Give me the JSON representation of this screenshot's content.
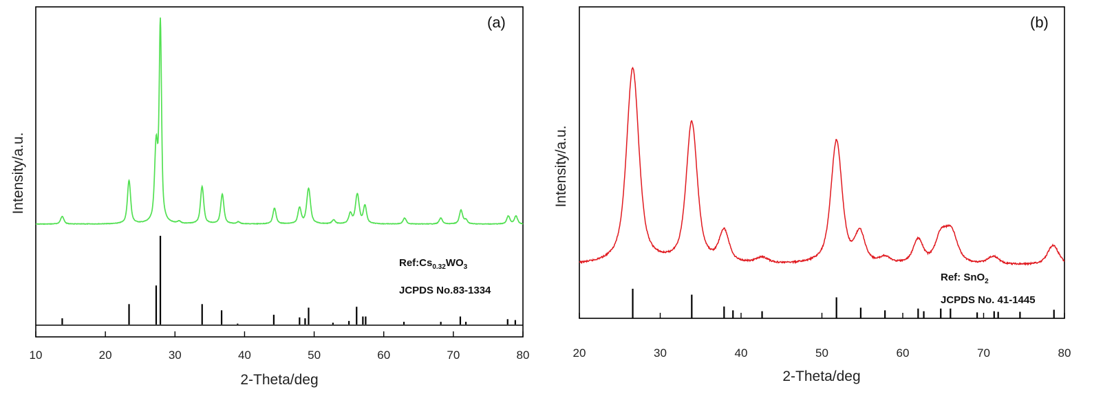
{
  "chart_data": [
    {
      "type": "line",
      "panel_label": "(a)",
      "xlabel": "2-Theta/deg",
      "ylabel": "Intensity/a.u.",
      "xlim": [
        10,
        80
      ],
      "xticks": [
        "10",
        "20",
        "30",
        "40",
        "50",
        "60",
        "70",
        "80"
      ],
      "grid": false,
      "pattern_color": "#52e052",
      "reference_text": {
        "main": "Ref:Cs",
        "sub": "0.32",
        "tail": "WO",
        "sub2": "3"
      },
      "reference_card": "JCPDS No.83-1334",
      "peaks": [
        {
          "x": 13.8,
          "y": 0.04,
          "w": 0.3
        },
        {
          "x": 23.4,
          "y": 0.22,
          "w": 0.3
        },
        {
          "x": 27.3,
          "y": 0.38,
          "w": 0.3
        },
        {
          "x": 27.9,
          "y": 1.0,
          "w": 0.22
        },
        {
          "x": 30.6,
          "y": 0.01,
          "w": 0.3
        },
        {
          "x": 33.9,
          "y": 0.19,
          "w": 0.3
        },
        {
          "x": 36.8,
          "y": 0.15,
          "w": 0.3
        },
        {
          "x": 39.1,
          "y": 0.01,
          "w": 0.3
        },
        {
          "x": 44.3,
          "y": 0.08,
          "w": 0.3
        },
        {
          "x": 47.9,
          "y": 0.08,
          "w": 0.3
        },
        {
          "x": 49.2,
          "y": 0.18,
          "w": 0.35
        },
        {
          "x": 52.8,
          "y": 0.02,
          "w": 0.3
        },
        {
          "x": 55.2,
          "y": 0.05,
          "w": 0.3
        },
        {
          "x": 56.2,
          "y": 0.15,
          "w": 0.35
        },
        {
          "x": 57.3,
          "y": 0.09,
          "w": 0.3
        },
        {
          "x": 63.0,
          "y": 0.03,
          "w": 0.3
        },
        {
          "x": 68.2,
          "y": 0.03,
          "w": 0.3
        },
        {
          "x": 71.1,
          "y": 0.07,
          "w": 0.3
        },
        {
          "x": 71.8,
          "y": 0.02,
          "w": 0.3
        },
        {
          "x": 77.9,
          "y": 0.04,
          "w": 0.3
        },
        {
          "x": 79.0,
          "y": 0.04,
          "w": 0.3
        }
      ],
      "reference_lines": [
        {
          "x": 13.8,
          "h": 0.07
        },
        {
          "x": 23.4,
          "h": 0.23
        },
        {
          "x": 27.3,
          "h": 0.44
        },
        {
          "x": 27.9,
          "h": 1.0
        },
        {
          "x": 33.9,
          "h": 0.23
        },
        {
          "x": 36.7,
          "h": 0.16
        },
        {
          "x": 39.0,
          "h": 0.01
        },
        {
          "x": 44.2,
          "h": 0.11
        },
        {
          "x": 47.9,
          "h": 0.08
        },
        {
          "x": 48.7,
          "h": 0.07
        },
        {
          "x": 49.2,
          "h": 0.19
        },
        {
          "x": 52.7,
          "h": 0.02
        },
        {
          "x": 55.0,
          "h": 0.04
        },
        {
          "x": 56.1,
          "h": 0.2
        },
        {
          "x": 57.0,
          "h": 0.09
        },
        {
          "x": 57.4,
          "h": 0.09
        },
        {
          "x": 62.9,
          "h": 0.03
        },
        {
          "x": 68.2,
          "h": 0.03
        },
        {
          "x": 71.0,
          "h": 0.09
        },
        {
          "x": 71.8,
          "h": 0.03
        },
        {
          "x": 77.8,
          "h": 0.06
        },
        {
          "x": 78.9,
          "h": 0.05
        }
      ]
    },
    {
      "type": "line",
      "panel_label": "(b)",
      "xlabel": "2-Theta/deg",
      "ylabel": "Intensity/a.u.",
      "xlim": [
        20,
        80
      ],
      "xticks": [
        "20",
        "30",
        "40",
        "50",
        "60",
        "70",
        "80"
      ],
      "grid": false,
      "pattern_color": "#e0181e",
      "reference_text": {
        "main": "Ref: SnO",
        "sub": "",
        "tail": "",
        "sub2": "2"
      },
      "reference_card": "JCPDS No. 41-1445",
      "peaks": [
        {
          "x": 26.6,
          "y": 1.0,
          "w": 1.0
        },
        {
          "x": 33.9,
          "y": 0.72,
          "w": 0.9
        },
        {
          "x": 37.9,
          "y": 0.16,
          "w": 0.8
        },
        {
          "x": 42.6,
          "y": 0.03,
          "w": 1.0
        },
        {
          "x": 51.8,
          "y": 0.63,
          "w": 0.9
        },
        {
          "x": 54.7,
          "y": 0.15,
          "w": 0.8
        },
        {
          "x": 57.8,
          "y": 0.03,
          "w": 0.8
        },
        {
          "x": 61.9,
          "y": 0.12,
          "w": 0.8
        },
        {
          "x": 64.7,
          "y": 0.13,
          "w": 0.9
        },
        {
          "x": 66.0,
          "y": 0.16,
          "w": 1.0
        },
        {
          "x": 71.2,
          "y": 0.04,
          "w": 0.9
        },
        {
          "x": 78.6,
          "y": 0.1,
          "w": 0.9
        }
      ],
      "reference_lines": [
        {
          "x": 26.6,
          "h": 1.0
        },
        {
          "x": 33.9,
          "h": 0.8
        },
        {
          "x": 37.9,
          "h": 0.4
        },
        {
          "x": 39.0,
          "h": 0.27
        },
        {
          "x": 42.6,
          "h": 0.24
        },
        {
          "x": 51.8,
          "h": 0.71
        },
        {
          "x": 54.8,
          "h": 0.36
        },
        {
          "x": 57.8,
          "h": 0.27
        },
        {
          "x": 61.9,
          "h": 0.33
        },
        {
          "x": 62.6,
          "h": 0.24
        },
        {
          "x": 64.7,
          "h": 0.33
        },
        {
          "x": 65.9,
          "h": 0.33
        },
        {
          "x": 69.2,
          "h": 0.2
        },
        {
          "x": 71.3,
          "h": 0.24
        },
        {
          "x": 71.8,
          "h": 0.22
        },
        {
          "x": 74.5,
          "h": 0.22
        },
        {
          "x": 78.7,
          "h": 0.29
        }
      ]
    }
  ]
}
